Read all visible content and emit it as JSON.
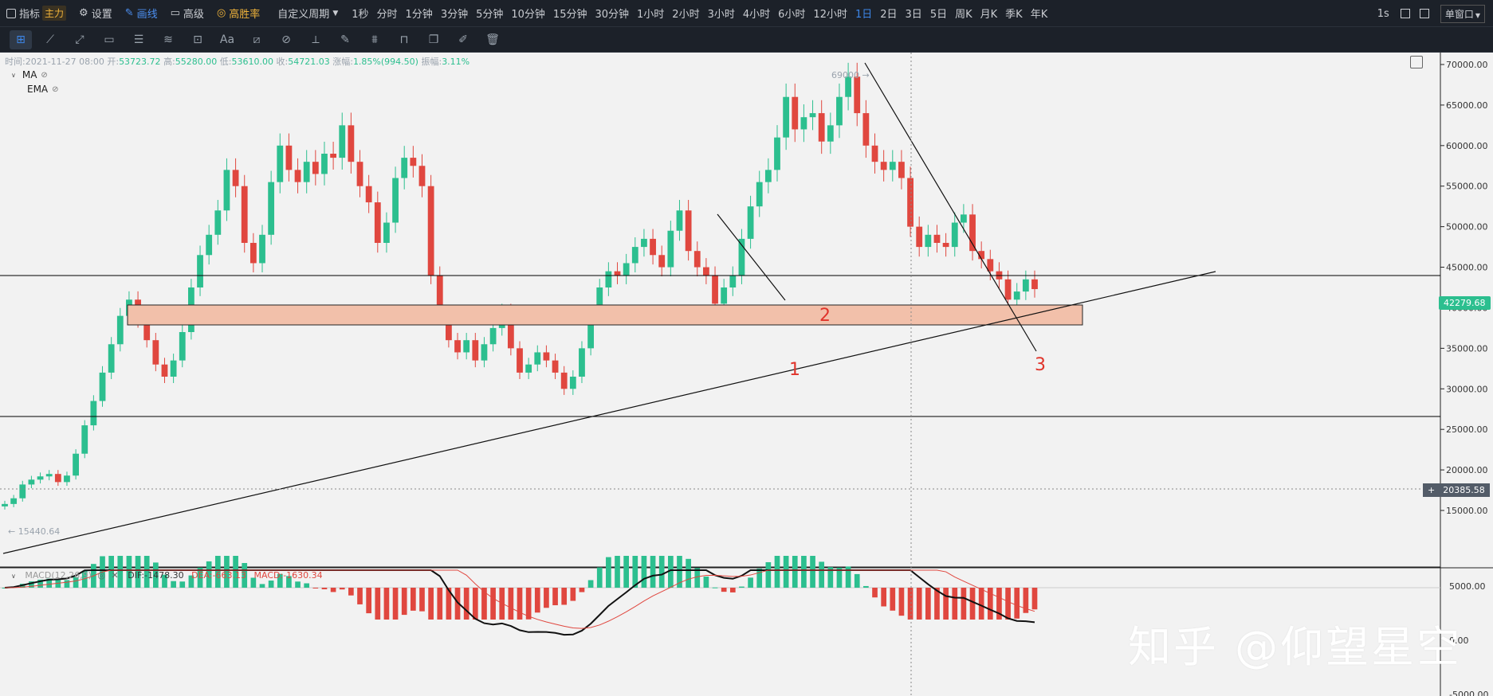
{
  "toolbar": {
    "indicator_label": "指标",
    "main_badge": "主力",
    "settings_label": "设置",
    "draw_label": "画线",
    "advanced_label": "高级",
    "winrate_label": "高胜率",
    "custom_period_label": "自定义周期",
    "periods": [
      "1秒",
      "分时",
      "1分钟",
      "3分钟",
      "5分钟",
      "10分钟",
      "15分钟",
      "30分钟",
      "1小时",
      "2小时",
      "3小时",
      "4小时",
      "6小时",
      "12小时",
      "1日",
      "2日",
      "3日",
      "5日",
      "周K",
      "月K",
      "季K",
      "年K"
    ],
    "active_period": "1日",
    "interval_label": "1s",
    "window_label": "单窗口"
  },
  "drawing_tools": [
    "crosshair",
    "segment",
    "ray",
    "rectangle",
    "parallel-channel",
    "wave",
    "measure",
    "text",
    "fib",
    "gann",
    "ruler",
    "brush",
    "pattern",
    "lock",
    "copy",
    "edit",
    "trash"
  ],
  "info_bar": {
    "time_label": "时间:",
    "time": "2021-11-27 08:00",
    "open_label": "开:",
    "open": "53723.72",
    "high_label": "高:",
    "high": "55280.00",
    "low_label": "低:",
    "low": "53610.00",
    "close_label": "收:",
    "close": "54721.03",
    "change_label": "涨幅:",
    "change": "1.85%(994.50)",
    "amp_label": "振幅:",
    "amplitude": "3.11%"
  },
  "indicators": {
    "ma": "MA",
    "ema": "EMA"
  },
  "price_axis": {
    "ticks": [
      "70000.00",
      "65000.00",
      "60000.00",
      "55000.00",
      "50000.00",
      "45000.00",
      "40000.00",
      "35000.00",
      "30000.00",
      "25000.00",
      "20000.00",
      "15000.00"
    ],
    "current_price": "42279.68",
    "crosshair_price": "20385.58",
    "low_label": "15440.64",
    "high_label": "69000"
  },
  "macd": {
    "title": "MACD(12,26,9)",
    "dif": "DIF:-1478.30",
    "dea": "DEA:-663.13",
    "macd": "MACD:-1630.34",
    "ticks": [
      "5000.00",
      "0.00",
      "-5000.00"
    ]
  },
  "annotations": [
    "1",
    "2",
    "3"
  ],
  "watermark": "知乎 @仰望星空",
  "colors": {
    "up": "#2cbf8f",
    "down": "#e0473f",
    "zone_fill": "#f2c0aa",
    "toolbar_bg": "#1c2129",
    "active": "#3d86e8"
  },
  "chart_data": {
    "type": "candlestick",
    "ylim": [
      10000,
      72000
    ],
    "closes": [
      15800,
      16500,
      18200,
      18800,
      19200,
      19500,
      18500,
      19300,
      22000,
      25500,
      28500,
      32000,
      35500,
      39000,
      41000,
      38500,
      36000,
      33000,
      31500,
      33500,
      37000,
      42500,
      46500,
      49000,
      52000,
      57000,
      55000,
      48000,
      45500,
      49000,
      55500,
      60000,
      57000,
      55500,
      58000,
      56500,
      59000,
      58500,
      62500,
      58000,
      55000,
      53000,
      48000,
      50500,
      56000,
      58500,
      57500,
      55000,
      44000,
      39000,
      36000,
      34500,
      36000,
      33500,
      35500,
      37500,
      39500,
      35000,
      32000,
      33000,
      34500,
      33500,
      32000,
      30000,
      31500,
      35000,
      39000,
      42500,
      44500,
      44000,
      45500,
      47500,
      48500,
      46500,
      45000,
      49500,
      52000,
      47000,
      45000,
      44000,
      40500,
      42500,
      44000,
      48500,
      52500,
      55500,
      57000,
      61000,
      66000,
      62000,
      63500,
      64000,
      60500,
      62500,
      66000,
      68500,
      64000,
      60000,
      58000,
      57000,
      58000,
      56000,
      50000,
      47500,
      49000,
      48000,
      47500,
      50500,
      51500,
      47000,
      46000,
      44500,
      43500,
      41000,
      42000,
      43500,
      42300
    ]
  }
}
